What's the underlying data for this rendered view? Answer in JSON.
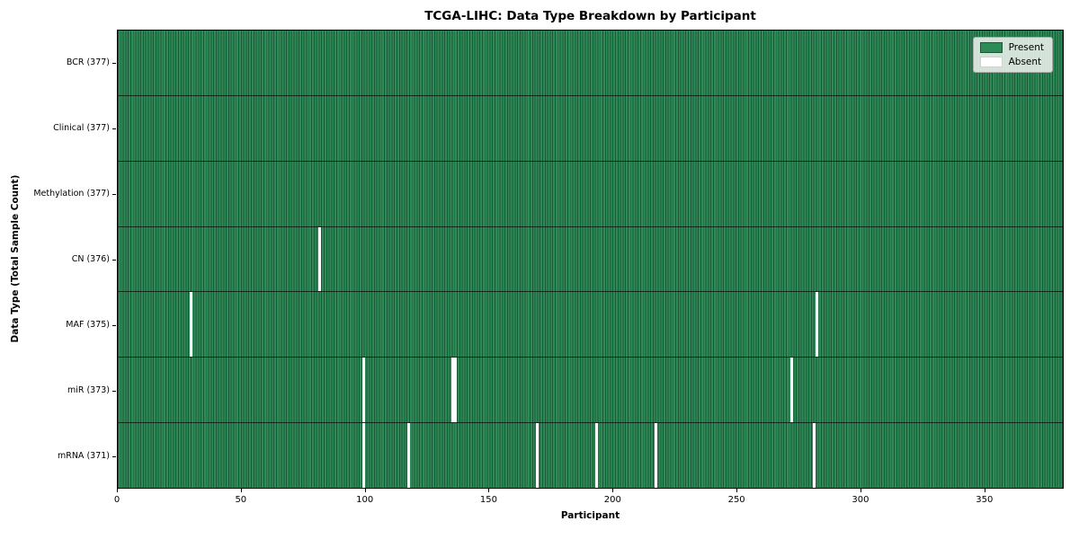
{
  "title": "TCGA-LIHC: Data Type Breakdown by Participant",
  "colors": {
    "present": "#2e8b57",
    "present_edge": "#1c5838",
    "absent": "#ffffff",
    "background": "#ffffff"
  },
  "legend": {
    "present_label": "Present",
    "absent_label": "Absent"
  },
  "chart_data": {
    "type": "heatmap",
    "title": "TCGA-LIHC: Data Type Breakdown by Participant",
    "xlabel": "Participant",
    "ylabel": "Data Type (Total Sample Count)",
    "n_participants": 377,
    "x_axis_max": 382,
    "x_ticks": [
      0,
      50,
      100,
      150,
      200,
      250,
      300,
      350
    ],
    "grid": false,
    "legend_position": "upper right",
    "legend": [
      {
        "label": "Present",
        "color": "#2e8b57"
      },
      {
        "label": "Absent",
        "color": "#ffffff"
      }
    ],
    "rows": [
      {
        "data_type": "BCR",
        "label": "BCR (377)",
        "present_count": 377,
        "absent_participants": []
      },
      {
        "data_type": "Clinical",
        "label": "Clinical (377)",
        "present_count": 377,
        "absent_participants": []
      },
      {
        "data_type": "Methylation",
        "label": "Methylation (377)",
        "present_count": 377,
        "absent_participants": []
      },
      {
        "data_type": "CN",
        "label": "CN (376)",
        "present_count": 376,
        "absent_participants": [
          81
        ]
      },
      {
        "data_type": "MAF",
        "label": "MAF (375)",
        "present_count": 375,
        "absent_participants": [
          29,
          282
        ]
      },
      {
        "data_type": "miR",
        "label": "miR (373)",
        "present_count": 373,
        "absent_participants": [
          99,
          135,
          136,
          272
        ]
      },
      {
        "data_type": "mRNA",
        "label": "mRNA (371)",
        "present_count": 371,
        "absent_participants": [
          99,
          117,
          169,
          193,
          217,
          281
        ]
      }
    ]
  }
}
